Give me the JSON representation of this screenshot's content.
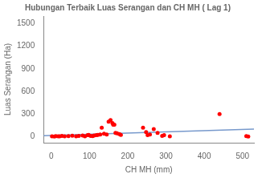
{
  "chart_data": {
    "type": "scatter",
    "title": "Hubungan Terbaik Luas Serangan dan CH MH ( Lag 1)",
    "xlabel": "CH MH (mm)",
    "ylabel": "Luas Serangan (Ha)",
    "xlim": [
      -20,
      530
    ],
    "ylim": [
      -80,
      1600
    ],
    "xticks": [
      0,
      100,
      200,
      300,
      400,
      500
    ],
    "yticks": [
      0,
      300,
      600,
      900,
      1200,
      1500
    ],
    "grid": false,
    "series": [
      {
        "type": "scatter",
        "color": "#ff0000",
        "x": [
          2,
          8,
          12,
          18,
          22,
          28,
          35,
          45,
          55,
          65,
          72,
          82,
          88,
          95,
          98,
          103,
          108,
          112,
          118,
          122,
          128,
          132,
          138,
          145,
          150,
          155,
          160,
          162,
          165,
          168,
          172,
          178,
          182,
          240,
          248,
          252,
          258,
          268,
          278,
          290,
          295,
          310,
          440,
          510,
          515
        ],
        "values": [
          5,
          3,
          8,
          4,
          6,
          10,
          5,
          8,
          12,
          6,
          10,
          15,
          5,
          20,
          25,
          10,
          8,
          15,
          20,
          25,
          30,
          120,
          40,
          30,
          200,
          220,
          180,
          160,
          160,
          50,
          45,
          35,
          25,
          120,
          60,
          20,
          30,
          100,
          50,
          10,
          20,
          5,
          300,
          8,
          3
        ]
      },
      {
        "type": "line",
        "color": "#7799cc",
        "x": [
          -20,
          530
        ],
        "values": [
          11.8,
          99.8
        ]
      }
    ]
  }
}
